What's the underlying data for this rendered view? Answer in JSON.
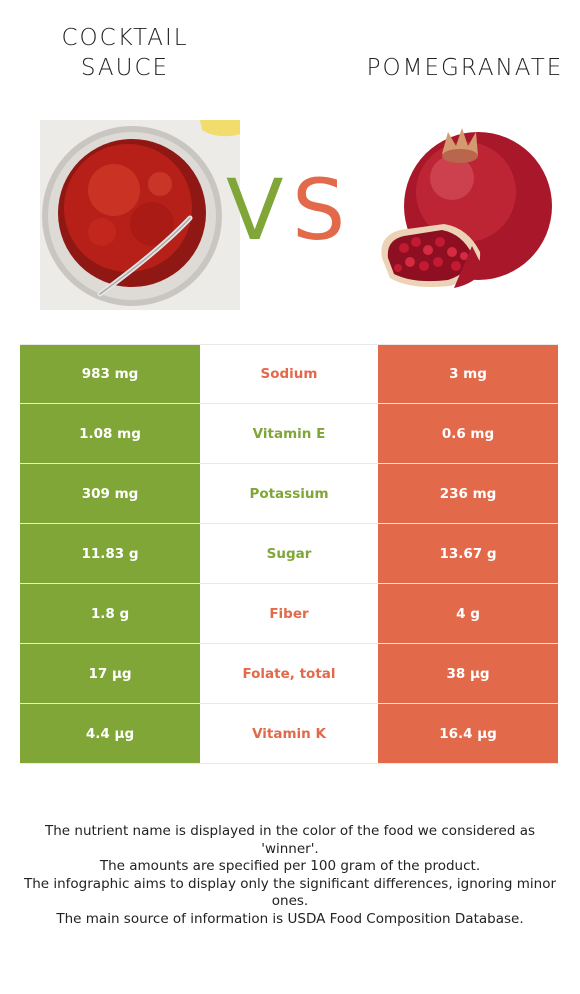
{
  "left_food": {
    "title": "COCKTAIL\nSAUCE",
    "color": "#7fa637"
  },
  "right_food": {
    "title": "POMEGRANATE",
    "color": "#e2694a"
  },
  "vs": {
    "v": "V",
    "s": "S"
  },
  "rows": [
    {
      "left": "983 mg",
      "nutrient": "Sodium",
      "right": "3 mg",
      "winner": "right"
    },
    {
      "left": "1.08 mg",
      "nutrient": "Vitamin E",
      "right": "0.6 mg",
      "winner": "left"
    },
    {
      "left": "309 mg",
      "nutrient": "Potassium",
      "right": "236 mg",
      "winner": "left"
    },
    {
      "left": "11.83 g",
      "nutrient": "Sugar",
      "right": "13.67 g",
      "winner": "left"
    },
    {
      "left": "1.8 g",
      "nutrient": "Fiber",
      "right": "4 g",
      "winner": "right"
    },
    {
      "left": "17 µg",
      "nutrient": "Folate, total",
      "right": "38 µg",
      "winner": "right"
    },
    {
      "left": "4.4 µg",
      "nutrient": "Vitamin K",
      "right": "16.4 µg",
      "winner": "right"
    }
  ],
  "footer": {
    "line1": "The nutrient name is displayed in the color of the food we considered as 'winner'.",
    "line2": "The amounts are specified per 100 gram of the product.",
    "line3": "The infographic aims to display only the significant differences, ignoring minor ones.",
    "line4": "The main source of information is USDA Food Composition Database."
  }
}
